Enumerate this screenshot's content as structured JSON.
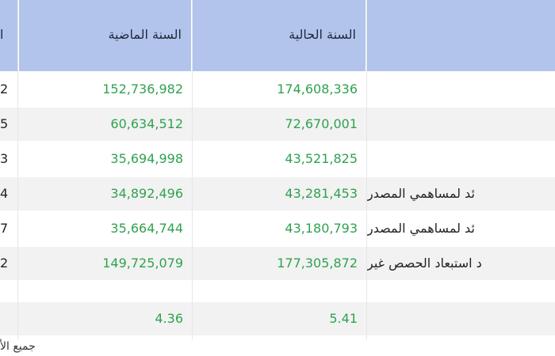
{
  "table": {
    "headers": {
      "col_prev_year": "السنة الماضية",
      "col_curr_year": "السنة الحالية",
      "col_edge": "ا"
    },
    "rows": [
      {
        "edge": "2",
        "prev": "152,736,982",
        "curr": "174,608,336",
        "label": ""
      },
      {
        "edge": "5",
        "prev": "60,634,512",
        "curr": "72,670,001",
        "label": ""
      },
      {
        "edge": "3",
        "prev": "35,694,998",
        "curr": "43,521,825",
        "label": ""
      },
      {
        "edge": "4",
        "prev": "34,892,496",
        "curr": "43,281,453",
        "label": "ئد لمساهمي المصدر"
      },
      {
        "edge": "7",
        "prev": "35,664,744",
        "curr": "43,180,793",
        "label": "ئد لمساهمي المصدر"
      },
      {
        "edge": "2",
        "prev": "149,725,079",
        "curr": "177,305,872",
        "label": "د استبعاد الحصص غير"
      },
      {
        "edge": "",
        "prev": "",
        "curr": "",
        "label": ""
      },
      {
        "edge": "",
        "prev": "4.36",
        "curr": "5.41",
        "label": ""
      }
    ]
  },
  "footer": {
    "note": "جميع الأ"
  },
  "colors": {
    "header_bg": "#b2c4ec",
    "number_green": "#2fa24f",
    "zebra_gray": "#f2f2f2"
  }
}
